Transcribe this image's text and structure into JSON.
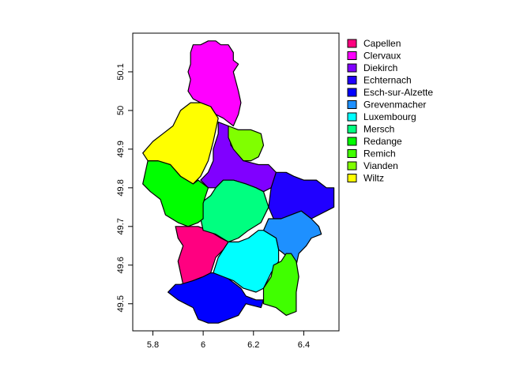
{
  "chart_data": {
    "type": "map",
    "title": "",
    "xlabel": "",
    "ylabel": "",
    "xlim": [
      5.72,
      6.54
    ],
    "ylim": [
      49.43,
      50.2
    ],
    "x_ticks": [
      {
        "value": 5.8,
        "label": "5.8"
      },
      {
        "value": 6.0,
        "label": "6"
      },
      {
        "value": 6.2,
        "label": "6.2"
      },
      {
        "value": 6.4,
        "label": "6.4"
      }
    ],
    "y_ticks": [
      {
        "value": 49.5,
        "label": "49.5"
      },
      {
        "value": 49.6,
        "label": "49.6"
      },
      {
        "value": 49.7,
        "label": "49.7"
      },
      {
        "value": 49.8,
        "label": "49.8"
      },
      {
        "value": 49.9,
        "label": "49.9"
      },
      {
        "value": 50.0,
        "label": "50"
      },
      {
        "value": 50.1,
        "label": "50.1"
      }
    ],
    "grid": false,
    "legend_position": "top-right",
    "regions": [
      {
        "name": "Capellen",
        "color": "#FF0080",
        "polygon": [
          [
            5.89,
            49.7
          ],
          [
            5.93,
            49.7
          ],
          [
            5.98,
            49.7
          ],
          [
            6.02,
            49.69
          ],
          [
            6.07,
            49.67
          ],
          [
            6.1,
            49.66
          ],
          [
            6.08,
            49.64
          ],
          [
            6.05,
            49.62
          ],
          [
            6.03,
            49.58
          ],
          [
            6.0,
            49.57
          ],
          [
            5.96,
            49.56
          ],
          [
            5.92,
            49.55
          ],
          [
            5.91,
            49.58
          ],
          [
            5.9,
            49.61
          ],
          [
            5.92,
            49.65
          ],
          [
            5.9,
            49.67
          ]
        ]
      },
      {
        "name": "Clervaux",
        "color": "#FF00FF",
        "polygon": [
          [
            5.96,
            50.17
          ],
          [
            5.99,
            50.17
          ],
          [
            6.02,
            50.18
          ],
          [
            6.05,
            50.18
          ],
          [
            6.07,
            50.17
          ],
          [
            6.1,
            50.17
          ],
          [
            6.12,
            50.15
          ],
          [
            6.12,
            50.13
          ],
          [
            6.14,
            50.12
          ],
          [
            6.12,
            50.1
          ],
          [
            6.14,
            50.05
          ],
          [
            6.15,
            50.02
          ],
          [
            6.14,
            49.99
          ],
          [
            6.12,
            49.96
          ],
          [
            6.08,
            49.98
          ],
          [
            6.05,
            49.99
          ],
          [
            6.03,
            50.01
          ],
          [
            5.99,
            50.02
          ],
          [
            5.96,
            50.03
          ],
          [
            5.94,
            50.05
          ],
          [
            5.95,
            50.08
          ],
          [
            5.94,
            50.1
          ],
          [
            5.95,
            50.12
          ],
          [
            5.95,
            50.15
          ]
        ]
      },
      {
        "name": "Diekirch",
        "color": "#8000FF",
        "polygon": [
          [
            6.06,
            49.97
          ],
          [
            6.1,
            49.96
          ],
          [
            6.11,
            49.91
          ],
          [
            6.16,
            49.87
          ],
          [
            6.22,
            49.86
          ],
          [
            6.26,
            49.86
          ],
          [
            6.29,
            49.84
          ],
          [
            6.3,
            49.81
          ],
          [
            6.27,
            49.8
          ],
          [
            6.24,
            49.79
          ],
          [
            6.21,
            49.8
          ],
          [
            6.17,
            49.81
          ],
          [
            6.12,
            49.82
          ],
          [
            6.08,
            49.82
          ],
          [
            6.05,
            49.8
          ],
          [
            6.02,
            49.8
          ],
          [
            5.99,
            49.82
          ],
          [
            6.02,
            49.84
          ],
          [
            6.04,
            49.87
          ],
          [
            6.04,
            49.9
          ],
          [
            6.06,
            49.94
          ]
        ]
      },
      {
        "name": "Echternach",
        "color": "#2000FF",
        "polygon": [
          [
            6.29,
            49.84
          ],
          [
            6.33,
            49.84
          ],
          [
            6.36,
            49.83
          ],
          [
            6.4,
            49.82
          ],
          [
            6.45,
            49.82
          ],
          [
            6.49,
            49.8
          ],
          [
            6.52,
            49.8
          ],
          [
            6.52,
            49.75
          ],
          [
            6.49,
            49.74
          ],
          [
            6.46,
            49.73
          ],
          [
            6.43,
            49.72
          ],
          [
            6.39,
            49.74
          ],
          [
            6.35,
            49.73
          ],
          [
            6.31,
            49.72
          ],
          [
            6.28,
            49.72
          ],
          [
            6.26,
            49.75
          ],
          [
            6.27,
            49.8
          ]
        ]
      },
      {
        "name": "Esch-sur-Alzette",
        "color": "#0000FF",
        "polygon": [
          [
            5.91,
            49.55
          ],
          [
            5.96,
            49.56
          ],
          [
            6.0,
            49.57
          ],
          [
            6.03,
            49.58
          ],
          [
            6.07,
            49.58
          ],
          [
            6.11,
            49.56
          ],
          [
            6.15,
            49.54
          ],
          [
            6.17,
            49.52
          ],
          [
            6.21,
            49.51
          ],
          [
            6.24,
            49.51
          ],
          [
            6.23,
            49.49
          ],
          [
            6.17,
            49.5
          ],
          [
            6.14,
            49.47
          ],
          [
            6.1,
            49.46
          ],
          [
            6.06,
            49.45
          ],
          [
            6.02,
            49.45
          ],
          [
            5.98,
            49.46
          ],
          [
            5.96,
            49.49
          ],
          [
            5.93,
            49.5
          ],
          [
            5.9,
            49.51
          ],
          [
            5.86,
            49.53
          ],
          [
            5.89,
            49.55
          ]
        ]
      },
      {
        "name": "Grevenmacher",
        "color": "#1E90FF",
        "polygon": [
          [
            6.24,
            49.69
          ],
          [
            6.26,
            49.72
          ],
          [
            6.31,
            49.72
          ],
          [
            6.35,
            49.73
          ],
          [
            6.39,
            49.74
          ],
          [
            6.43,
            49.72
          ],
          [
            6.46,
            49.7
          ],
          [
            6.47,
            49.68
          ],
          [
            6.43,
            49.67
          ],
          [
            6.41,
            49.65
          ],
          [
            6.38,
            49.63
          ],
          [
            6.37,
            49.6
          ],
          [
            6.35,
            49.61
          ],
          [
            6.32,
            49.63
          ],
          [
            6.3,
            49.64
          ],
          [
            6.29,
            49.67
          ]
        ]
      },
      {
        "name": "Luxembourg",
        "color": "#00FFFF",
        "polygon": [
          [
            6.1,
            49.66
          ],
          [
            6.14,
            49.66
          ],
          [
            6.18,
            49.67
          ],
          [
            6.22,
            49.69
          ],
          [
            6.24,
            49.69
          ],
          [
            6.29,
            49.67
          ],
          [
            6.3,
            49.64
          ],
          [
            6.3,
            49.61
          ],
          [
            6.27,
            49.58
          ],
          [
            6.24,
            49.54
          ],
          [
            6.21,
            49.53
          ],
          [
            6.16,
            49.54
          ],
          [
            6.12,
            49.56
          ],
          [
            6.08,
            49.57
          ],
          [
            6.04,
            49.58
          ],
          [
            6.06,
            49.62
          ],
          [
            6.08,
            49.64
          ]
        ]
      },
      {
        "name": "Mersch",
        "color": "#00FF80",
        "polygon": [
          [
            6.05,
            49.8
          ],
          [
            6.08,
            49.82
          ],
          [
            6.12,
            49.82
          ],
          [
            6.17,
            49.81
          ],
          [
            6.21,
            49.8
          ],
          [
            6.24,
            49.79
          ],
          [
            6.26,
            49.75
          ],
          [
            6.23,
            49.71
          ],
          [
            6.18,
            49.69
          ],
          [
            6.14,
            49.67
          ],
          [
            6.1,
            49.66
          ],
          [
            6.05,
            49.68
          ],
          [
            6.0,
            49.69
          ],
          [
            5.99,
            49.72
          ],
          [
            5.99,
            49.76
          ],
          [
            6.03,
            49.78
          ]
        ]
      },
      {
        "name": "Redange",
        "color": "#00FF00",
        "polygon": [
          [
            5.78,
            49.87
          ],
          [
            5.83,
            49.87
          ],
          [
            5.87,
            49.86
          ],
          [
            5.91,
            49.83
          ],
          [
            5.96,
            49.81
          ],
          [
            5.98,
            49.82
          ],
          [
            6.02,
            49.8
          ],
          [
            6.0,
            49.76
          ],
          [
            6.0,
            49.72
          ],
          [
            5.98,
            49.71
          ],
          [
            5.94,
            49.7
          ],
          [
            5.9,
            49.71
          ],
          [
            5.85,
            49.73
          ],
          [
            5.83,
            49.77
          ],
          [
            5.79,
            49.79
          ],
          [
            5.76,
            49.81
          ],
          [
            5.77,
            49.84
          ]
        ]
      },
      {
        "name": "Remich",
        "color": "#40FF00",
        "polygon": [
          [
            6.28,
            49.6
          ],
          [
            6.31,
            49.61
          ],
          [
            6.33,
            49.63
          ],
          [
            6.35,
            49.63
          ],
          [
            6.37,
            49.61
          ],
          [
            6.38,
            49.57
          ],
          [
            6.37,
            49.53
          ],
          [
            6.37,
            49.48
          ],
          [
            6.33,
            49.47
          ],
          [
            6.29,
            49.49
          ],
          [
            6.24,
            49.5
          ],
          [
            6.24,
            49.54
          ],
          [
            6.27,
            49.57
          ]
        ]
      },
      {
        "name": "Vianden",
        "color": "#80FF00",
        "polygon": [
          [
            6.1,
            49.96
          ],
          [
            6.14,
            49.95
          ],
          [
            6.19,
            49.95
          ],
          [
            6.23,
            49.94
          ],
          [
            6.24,
            49.91
          ],
          [
            6.22,
            49.88
          ],
          [
            6.19,
            49.87
          ],
          [
            6.16,
            49.87
          ],
          [
            6.12,
            49.9
          ],
          [
            6.1,
            49.93
          ]
        ]
      },
      {
        "name": "Wiltz",
        "color": "#FFFF00",
        "polygon": [
          [
            5.76,
            49.89
          ],
          [
            5.8,
            49.92
          ],
          [
            5.84,
            49.94
          ],
          [
            5.88,
            49.96
          ],
          [
            5.91,
            50.0
          ],
          [
            5.95,
            50.02
          ],
          [
            5.99,
            50.02
          ],
          [
            6.03,
            50.01
          ],
          [
            6.06,
            49.98
          ],
          [
            6.04,
            49.92
          ],
          [
            6.02,
            49.87
          ],
          [
            5.99,
            49.83
          ],
          [
            5.96,
            49.81
          ],
          [
            5.91,
            49.83
          ],
          [
            5.87,
            49.86
          ],
          [
            5.82,
            49.87
          ],
          [
            5.78,
            49.87
          ]
        ]
      }
    ]
  }
}
